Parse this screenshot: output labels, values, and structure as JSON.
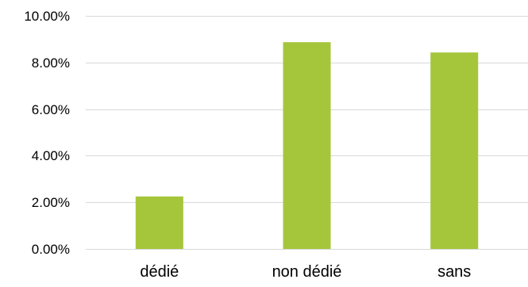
{
  "chart_data": {
    "type": "bar",
    "title": "",
    "xlabel": "",
    "ylabel": "",
    "categories": [
      "dédié",
      "non dédié",
      "sans"
    ],
    "values": [
      2.25,
      8.87,
      8.43
    ],
    "ylim": [
      0,
      10
    ],
    "yticks": [
      0,
      2,
      4,
      6,
      8,
      10
    ],
    "ytick_labels": [
      "0.00%",
      "2.00%",
      "4.00%",
      "6.00%",
      "8.00%",
      "10.00%"
    ],
    "grid": true,
    "legend": "none",
    "colors": {
      "bar": "#A5C63B",
      "grid": "#D9D9D9",
      "axis": "#D9D9D9",
      "text": "#000000"
    }
  }
}
